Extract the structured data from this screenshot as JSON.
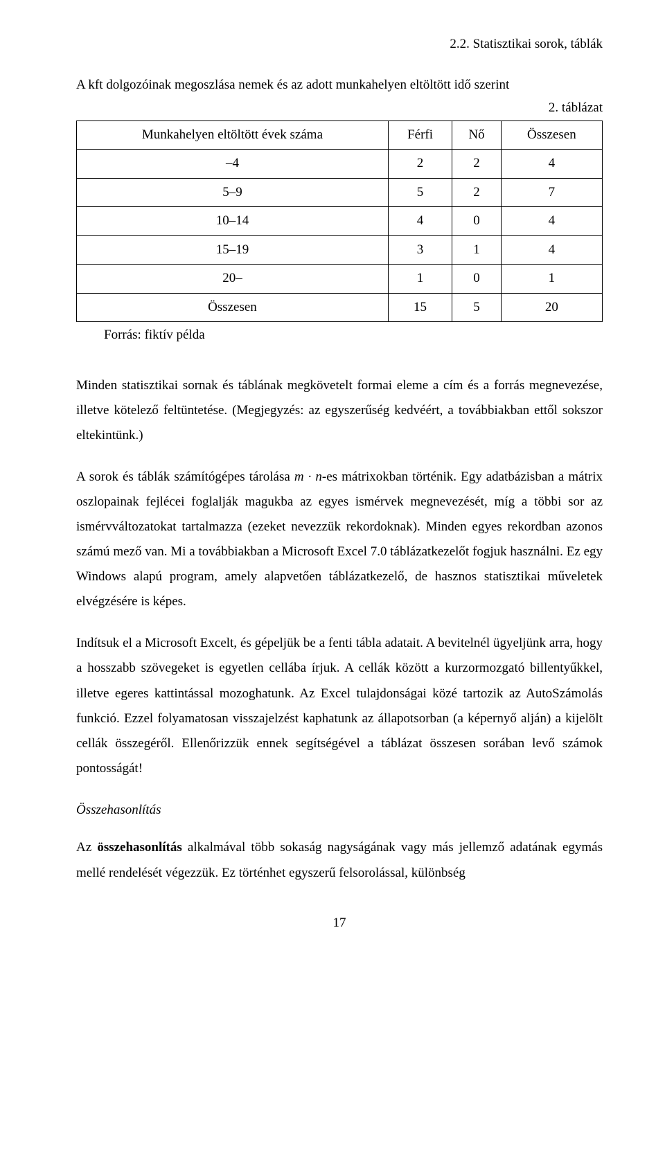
{
  "header": {
    "section_title": "2.2. Statisztikai sorok, táblák"
  },
  "table": {
    "caption": "A kft dolgozóinak megoszlása nemek és az adott munkahelyen eltöltött idő szerint",
    "table_number": "2. táblázat",
    "columns": [
      "Munkahelyen eltöltött évek száma",
      "Férfi",
      "Nő",
      "Összesen"
    ],
    "rows": [
      [
        "–4",
        "2",
        "2",
        "4"
      ],
      [
        "5–9",
        "5",
        "2",
        "7"
      ],
      [
        "10–14",
        "4",
        "0",
        "4"
      ],
      [
        "15–19",
        "3",
        "1",
        "4"
      ],
      [
        "20–",
        "1",
        "0",
        "1"
      ],
      [
        "Összesen",
        "15",
        "5",
        "20"
      ]
    ],
    "source": "Forrás: fiktív példa"
  },
  "paragraphs": {
    "p1_part1": "Minden statisztikai sornak és táblának megkövetelt formai eleme a cím és a forrás megnevezése, illetve kötelező feltüntetése. (Megjegyzés: az egyszerűség kedvéért, a továbbiakban ettől sokszor eltekintünk.)",
    "p2_part1": "A sorok és táblák számítógépes tárolása ",
    "p2_formula": "m · n",
    "p2_part2": "-es mátrixokban történik. Egy adatbázisban a mátrix oszlopainak fejlécei foglalják magukba az egyes ismérvek megnevezését, míg a többi sor az ismérvváltozatokat tartalmazza (ezeket nevezzük rekordoknak). Minden egyes rekordban azonos számú mező van. Mi a továbbiakban a Microsoft Excel 7.0 táblázatkezelőt fogjuk használni. Ez egy Windows alapú program, amely alapvetően táblázatkezelő, de hasznos statisztikai műveletek elvégzésére is képes.",
    "p3": "Indítsuk el a Microsoft Excelt, és gépeljük be a fenti tábla adatait. A bevitelnél ügyeljünk arra, hogy a hosszabb szövegeket is egyetlen cellába írjuk. A cellák között a kurzormozgató billentyűkkel, illetve egeres kattintással mozoghatunk. Az Excel tulajdonságai közé tartozik az AutoSzámolás funkció. Ezzel folyamatosan visszajelzést kaphatunk az állapotsorban (a képernyő alján) a kijelölt cellák összegéről. Ellenőrizzük ennek segítségével a táblázat összesen sorában levő számok pontosságát!"
  },
  "section": {
    "heading": "Összehasonlítás",
    "p4_part1": "Az ",
    "p4_bold": "összehasonlítás",
    "p4_part2": " alkalmával több sokaság nagyságának vagy más jellemző adatának egymás mellé rendelését végezzük. Ez történhet egyszerű felsorolással, különbség"
  },
  "page_number": "17"
}
